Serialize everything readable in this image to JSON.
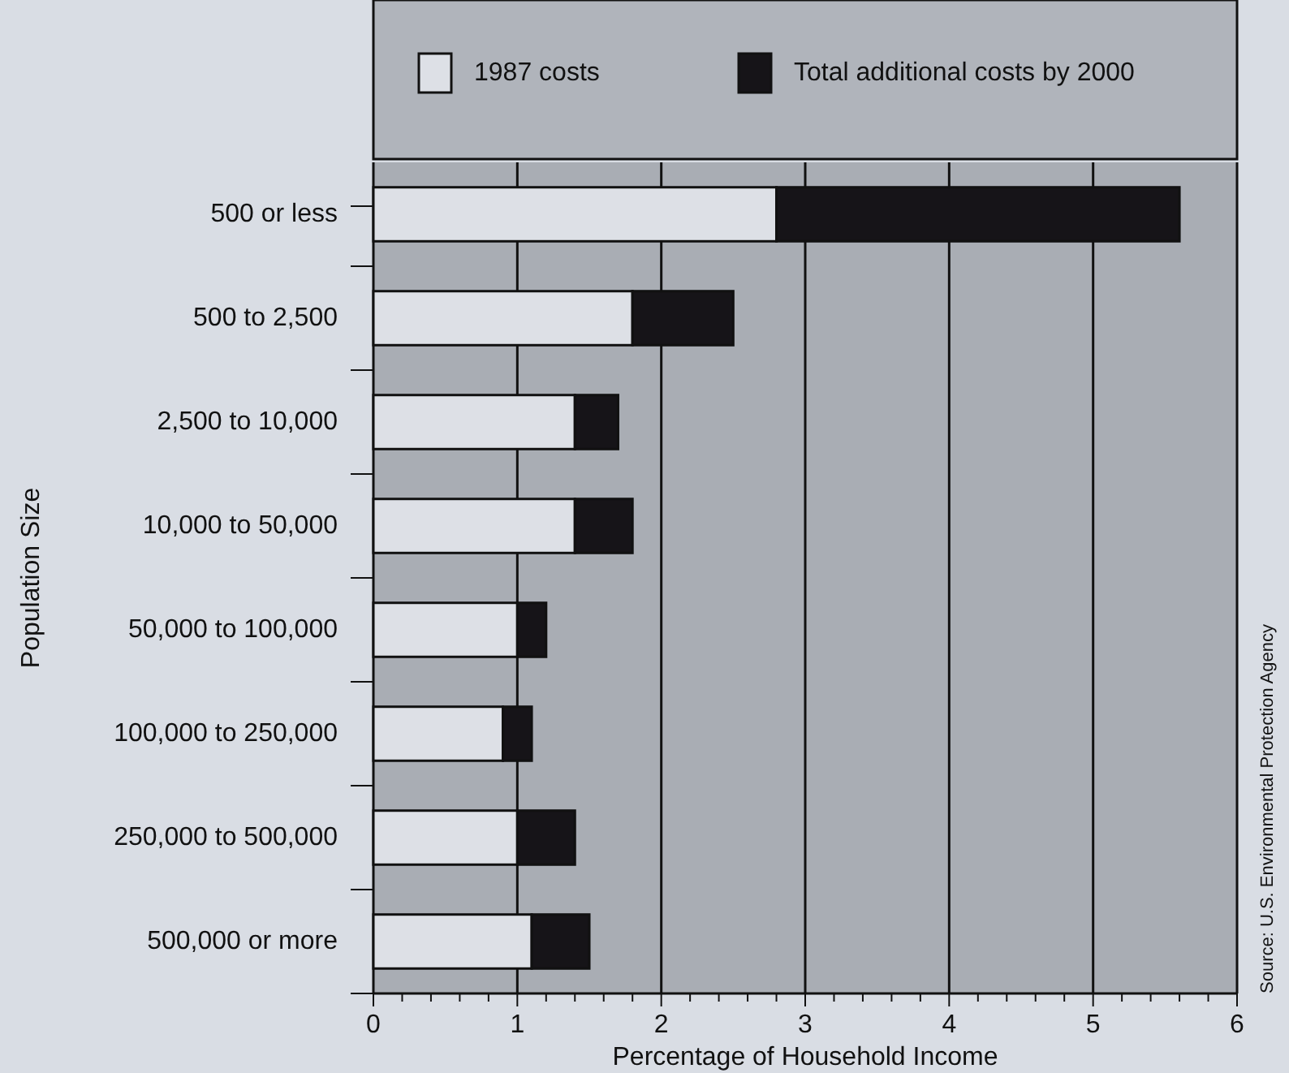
{
  "chart_data": {
    "type": "bar",
    "orientation": "horizontal",
    "stacked": true,
    "xlabel": "Percentage of Household Income",
    "ylabel": "Population Size",
    "categories": [
      "500 or less",
      "500 to 2,500",
      "2,500 to 10,000",
      "10,000 to 50,000",
      "50,000 to 100,000",
      "100,000 to 250,000",
      "250,000 to 500,000",
      "500,000 or more"
    ],
    "series": [
      {
        "name": "1987 costs",
        "color": "#dde0e6",
        "values": [
          2.8,
          1.8,
          1.4,
          1.4,
          1.0,
          0.9,
          1.0,
          1.1
        ]
      },
      {
        "name": "Total additional costs by 2000",
        "color": "#161418",
        "values": [
          2.8,
          0.7,
          0.3,
          0.4,
          0.2,
          0.2,
          0.4,
          0.4
        ]
      }
    ],
    "xlim": [
      0,
      6
    ],
    "xticks": [
      0,
      {
        "value": 0.2,
        "label": null
      },
      {
        "value": 0.4,
        "label": null
      },
      {
        "value": 0.6,
        "label": null
      },
      {
        "value": 0.8,
        "label": null
      },
      1,
      {
        "value": 1.2,
        "label": null
      },
      {
        "value": 1.4,
        "label": null
      },
      {
        "value": 1.6,
        "label": null
      },
      {
        "value": 1.8,
        "label": null
      },
      2,
      {
        "value": 2.2,
        "label": null
      },
      {
        "value": 2.4,
        "label": null
      },
      {
        "value": 2.6,
        "label": null
      },
      {
        "value": 2.8,
        "label": null
      },
      3,
      {
        "value": 3.2,
        "label": null
      },
      {
        "value": 3.4,
        "label": null
      },
      {
        "value": 3.6,
        "label": null
      },
      {
        "value": 3.8,
        "label": null
      },
      4,
      {
        "value": 4.2,
        "label": null
      },
      {
        "value": 4.4,
        "label": null
      },
      {
        "value": 4.6,
        "label": null
      },
      {
        "value": 4.8,
        "label": null
      },
      5,
      {
        "value": 5.2,
        "label": null
      },
      {
        "value": 5.4,
        "label": null
      },
      {
        "value": 5.6,
        "label": null
      },
      {
        "value": 5.8,
        "label": null
      },
      6
    ],
    "grid": "x",
    "legend": "top",
    "annotations": [
      "Source: U.S. Environmental Protection Agency"
    ]
  }
}
